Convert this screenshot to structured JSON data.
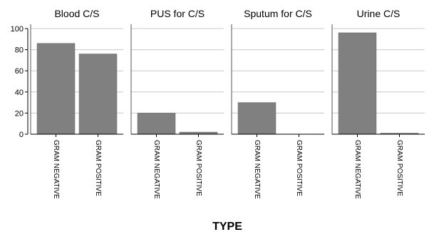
{
  "chart_data": {
    "type": "bar",
    "xlabel": "TYPE",
    "ylim": [
      0,
      100
    ],
    "yticks": [
      0,
      20,
      40,
      60,
      80,
      100
    ],
    "grid": true,
    "bar_color": "#808080",
    "categories": [
      "GRAM NEGATIVE",
      "GRAM POSITIVE"
    ],
    "panels": [
      {
        "title": "Blood C/S",
        "values": [
          86,
          76
        ]
      },
      {
        "title": "PUS for C/S",
        "values": [
          20,
          2
        ]
      },
      {
        "title": "Sputum for C/S",
        "values": [
          30,
          0
        ]
      },
      {
        "title": "Urine C/S",
        "values": [
          96,
          1
        ]
      }
    ]
  }
}
